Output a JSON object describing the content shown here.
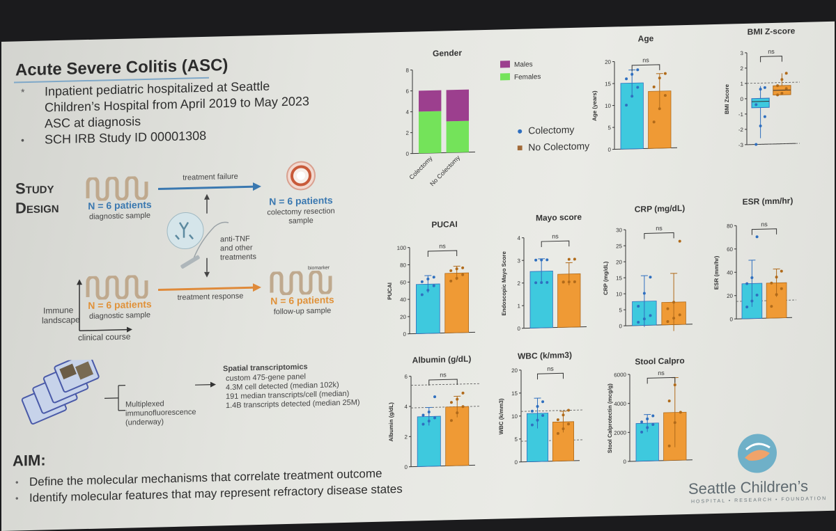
{
  "slide": {
    "title": "Acute Severe Colitis (ASC)",
    "bullets": [
      "Inpatient pediatric hospitalized at Seattle",
      "Children’s Hospital from April 2019 to May 2023",
      "ASC at diagnosis",
      "SCH IRB Study ID 00001308"
    ],
    "bullet_marker": "*",
    "bullet_marker2": "•"
  },
  "study": {
    "heading_line1": "Study",
    "heading_line2": "Design",
    "top_sample": "N = 6 patients",
    "top_sample_sub": "diagnostic sample",
    "failure_label": "treatment failure",
    "colectomy_n": "N = 6 patients",
    "colectomy_sub1": "colectomy resection",
    "colectomy_sub2": "sample",
    "treatment_label1": "anti-TNF",
    "treatment_label2": "and other",
    "treatment_label3": "treatments",
    "bottom_sample": "N = 6 patients",
    "bottom_sample_sub": "diagnostic sample",
    "response_label": "treatment response",
    "followup_n": "N = 6 patients",
    "followup_sub": "follow-up sample",
    "biomarker_label": "biomarker",
    "immune_label1": "Immune",
    "immune_label2": "landscape",
    "clinical_course": "clinical course"
  },
  "methods": {
    "spatial_title": "Spatial transcriptomics",
    "spatial_lines": [
      "custom 475-gene panel",
      "4.3M cell detected (median 102k)",
      "191 median transcripts/cell (median)",
      "1.4B transcripts detected (median 25M)"
    ],
    "if_title1": "Multiplexed",
    "if_title2": "immunofluorescence",
    "if_status": "(underway)"
  },
  "aim": {
    "title": "AIM:",
    "items": [
      "Define the molecular mechanisms that correlate treatment outcome",
      "Identify molecular features that may represent refractory disease states"
    ]
  },
  "legend": {
    "colectomy": "Colectomy",
    "no_colectomy": "No Colectomy",
    "males": "Males",
    "females": "Females"
  },
  "colors": {
    "colectomy": "#3ec9de",
    "no_colectomy": "#ef9a35",
    "males": "#9c3f8e",
    "females": "#74e35a",
    "dot_blue": "#2f6fbf",
    "dot_orange": "#b06a1a"
  },
  "logo": {
    "name": "Seattle Children’s",
    "tagline": "HOSPITAL • RESEARCH • FOUNDATION"
  },
  "chart_data": [
    {
      "id": "gender",
      "type": "bar",
      "title": "Gender",
      "categories": [
        "Colectomy",
        "No Colectomy"
      ],
      "series": [
        {
          "name": "Females",
          "values": [
            4,
            3
          ]
        },
        {
          "name": "Males",
          "values": [
            2,
            3
          ]
        }
      ],
      "stacked": true,
      "ylim": [
        0,
        8
      ],
      "yticks": [
        "0",
        "2",
        "4",
        "6",
        "8"
      ],
      "legend_position": "top-right"
    },
    {
      "id": "age",
      "type": "bar",
      "title": "Age",
      "ylabel": "Age (years)",
      "categories": [
        "Colectomy",
        "No Colectomy"
      ],
      "values": [
        15,
        13
      ],
      "errors": [
        3,
        4
      ],
      "ylim": [
        0,
        20
      ],
      "yticks": [
        "0",
        "5",
        "10",
        "15",
        "20"
      ],
      "significance": "ns",
      "points": [
        [
          10,
          12,
          14,
          16,
          17,
          18
        ],
        [
          6,
          9,
          12,
          14,
          16,
          17
        ]
      ]
    },
    {
      "id": "bmi",
      "type": "box",
      "title": "BMI Z-score",
      "ylabel": "BMI Zscore",
      "categories": [
        "Colectomy",
        "No Colectomy"
      ],
      "boxes": [
        {
          "min": -2.6,
          "q1": -0.6,
          "median": -0.2,
          "q3": 0.0,
          "max": 0.8
        },
        {
          "min": 0.2,
          "q1": 0.2,
          "median": 0.5,
          "q3": 0.8,
          "max": 1.6
        }
      ],
      "reference_lines": [
        1,
        -3
      ],
      "ylim": [
        -3,
        3
      ],
      "yticks": [
        "-3",
        "-2",
        "-1",
        "0",
        "1",
        "2",
        "3"
      ],
      "significance": "ns",
      "points": [
        [
          -3.2,
          -1.8,
          -1.2,
          -0.4,
          0.6,
          0.7
        ],
        [
          0.2,
          0.3,
          0.6,
          0.8,
          1.2,
          1.6
        ]
      ]
    },
    {
      "id": "pucai",
      "type": "bar",
      "title": "PUCAI",
      "ylabel": "PUCAI",
      "categories": [
        "Colectomy",
        "No Colectomy"
      ],
      "values": [
        57,
        69
      ],
      "errors": [
        10,
        8
      ],
      "ylim": [
        0,
        100
      ],
      "yticks": [
        "0",
        "20",
        "40",
        "60",
        "80",
        "100"
      ],
      "significance": "ns",
      "points": [
        [
          45,
          50,
          55,
          60,
          63,
          65
        ],
        [
          60,
          63,
          67,
          72,
          74,
          75
        ]
      ]
    },
    {
      "id": "mayo",
      "type": "bar",
      "title": "Mayo score",
      "ylabel": "Endoscopic Mayo Score",
      "categories": [
        "Colectomy",
        "No Colectomy"
      ],
      "values": [
        2.5,
        2.35
      ],
      "errors": [
        0.55,
        0.5
      ],
      "ylim": [
        0,
        4
      ],
      "yticks": [
        "0",
        "1",
        "2",
        "3",
        "4"
      ],
      "significance": "ns",
      "points": [
        [
          2,
          2,
          2,
          3,
          3,
          3
        ],
        [
          2,
          2,
          2,
          2,
          3,
          3
        ]
      ]
    },
    {
      "id": "crp",
      "type": "bar",
      "title": "CRP (mg/dL)",
      "ylabel": "CRP (mg/dL)",
      "categories": [
        "Colectomy",
        "No Colectomy"
      ],
      "values": [
        7.5,
        7
      ],
      "errors": [
        8,
        9
      ],
      "ylim": [
        0,
        30
      ],
      "yticks": [
        "0",
        "5",
        "10",
        "15",
        "20",
        "25",
        "30"
      ],
      "significance": "ns",
      "points": [
        [
          1,
          2,
          3,
          6,
          10,
          15
        ],
        [
          1,
          2,
          3,
          5,
          7,
          26
        ]
      ]
    },
    {
      "id": "esr",
      "type": "bar",
      "title": "ESR (mm/hr)",
      "ylabel": "ESR (mm/hr)",
      "categories": [
        "Colectomy",
        "No Colectomy"
      ],
      "values": [
        30,
        30
      ],
      "errors": [
        20,
        12
      ],
      "reference_lines": [
        15
      ],
      "ylim": [
        0,
        80
      ],
      "yticks": [
        "0",
        "20",
        "40",
        "60",
        "80"
      ],
      "significance": "ns",
      "points": [
        [
          10,
          15,
          20,
          30,
          35,
          70
        ],
        [
          10,
          20,
          25,
          30,
          35,
          40
        ]
      ]
    },
    {
      "id": "albumin",
      "type": "bar",
      "title": "Albumin (g/dL)",
      "ylabel": "Albumin (g/dL)",
      "categories": [
        "Colectomy",
        "No Colectomy"
      ],
      "values": [
        3.3,
        3.9
      ],
      "errors": [
        0.6,
        0.7
      ],
      "reference_lines": [
        5.4,
        3.9
      ],
      "ylim": [
        0,
        6
      ],
      "yticks": [
        "0",
        "2",
        "4",
        "6"
      ],
      "significance": "ns",
      "points": [
        [
          2.8,
          3.0,
          3.2,
          3.4,
          3.6,
          4.6
        ],
        [
          3.0,
          3.5,
          3.9,
          4.2,
          4.4,
          4.8
        ]
      ]
    },
    {
      "id": "wbc",
      "type": "bar",
      "title": "WBC (k/mm3)",
      "ylabel": "WBC (k/mm3)",
      "categories": [
        "Colectomy",
        "No Colectomy"
      ],
      "values": [
        10.5,
        8.5
      ],
      "errors": [
        3.3,
        2.3
      ],
      "reference_lines": [
        11,
        4.5
      ],
      "ylim": [
        0,
        20
      ],
      "yticks": [
        "0",
        "5",
        "10",
        "15",
        "20"
      ],
      "significance": "ns",
      "points": [
        [
          8,
          9,
          10,
          11,
          12,
          13
        ],
        [
          6,
          7,
          8,
          9,
          10,
          11
        ]
      ]
    },
    {
      "id": "calpro",
      "type": "bar",
      "title": "Stool Calpro",
      "ylabel": "Stool Calprotectin (mcg/g)",
      "categories": [
        "Colectomy",
        "No Colectomy"
      ],
      "values": [
        2600,
        3300
      ],
      "errors": [
        600,
        2400
      ],
      "ylim": [
        0,
        6000
      ],
      "yticks": [
        "0",
        "2000",
        "4000",
        "6000"
      ],
      "significance": "ns",
      "points": [
        [
          2000,
          2300,
          2500,
          2700,
          2900,
          3100
        ],
        [
          1000,
          2600,
          3300,
          4100,
          5200
        ]
      ]
    }
  ]
}
